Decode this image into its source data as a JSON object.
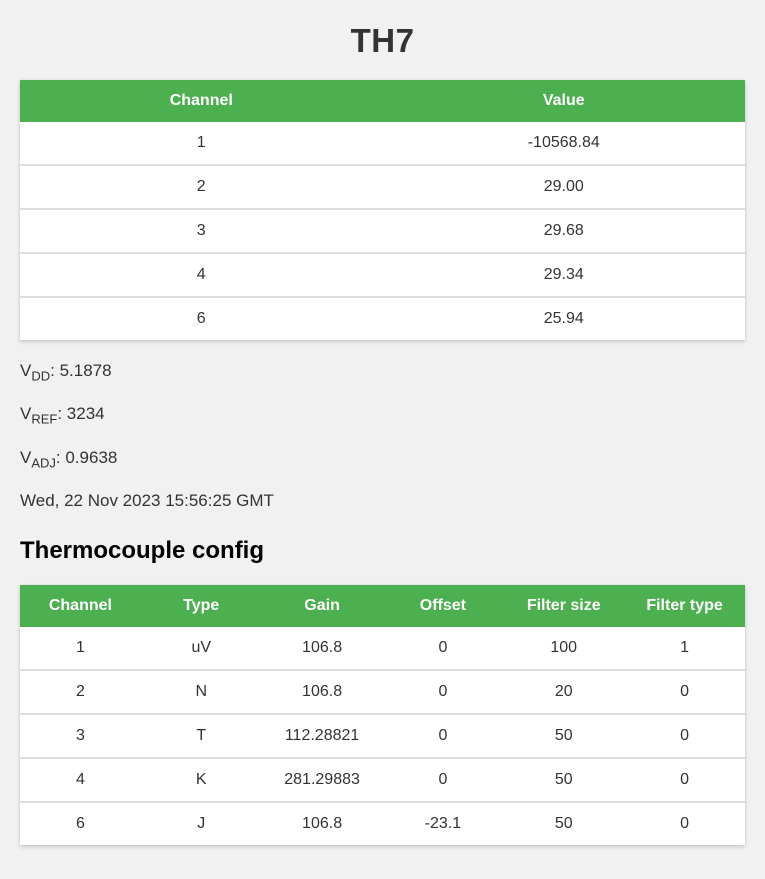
{
  "page": {
    "title": "TH7",
    "section_heading": "Thermocouple config",
    "timestamp": "Wed, 22 Nov 2023 15:56:25 GMT"
  },
  "readings_table": {
    "headers": [
      "Channel",
      "Value"
    ],
    "rows": [
      [
        "1",
        "-10568.84"
      ],
      [
        "2",
        "29.00"
      ],
      [
        "3",
        "29.68"
      ],
      [
        "4",
        "29.34"
      ],
      [
        "6",
        "25.94"
      ]
    ]
  },
  "voltages": [
    {
      "base": "V",
      "sub": "DD",
      "value_text": ": 5.1878"
    },
    {
      "base": "V",
      "sub": "REF",
      "value_text": ": 3234"
    },
    {
      "base": "V",
      "sub": "ADJ",
      "value_text": ": 0.9638"
    }
  ],
  "config_table": {
    "headers": [
      "Channel",
      "Type",
      "Gain",
      "Offset",
      "Filter size",
      "Filter type"
    ],
    "rows": [
      [
        "1",
        "uV",
        "106.8",
        "0",
        "100",
        "1"
      ],
      [
        "2",
        "N",
        "106.8",
        "0",
        "20",
        "0"
      ],
      [
        "3",
        "T",
        "112.28821",
        "0",
        "50",
        "0"
      ],
      [
        "4",
        "K",
        "281.29883",
        "0",
        "50",
        "0"
      ],
      [
        "6",
        "J",
        "106.8",
        "-23.1",
        "50",
        "0"
      ]
    ]
  },
  "colors": {
    "accent": "#4caf50",
    "header_text": "#ffffff",
    "body_text": "#333333",
    "heading_text": "#000000",
    "page_bg": "#f1f1f1",
    "row_border": "#dddddd",
    "table_bg": "#ffffff"
  }
}
